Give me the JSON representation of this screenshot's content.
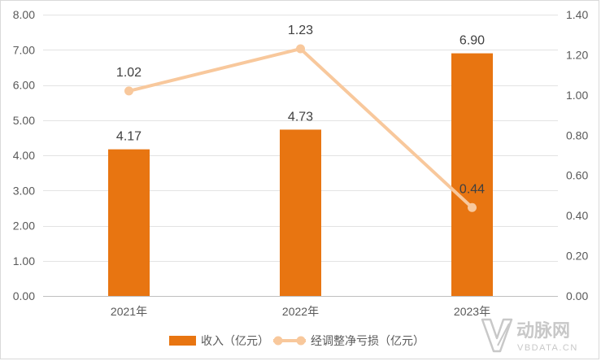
{
  "chart_data": {
    "type": "bar+line",
    "categories": [
      "2021年",
      "2022年",
      "2023年"
    ],
    "series": [
      {
        "name": "收入（亿元）",
        "type": "bar",
        "axis": "left",
        "values": [
          4.17,
          4.73,
          6.9
        ],
        "labels": [
          "4.17",
          "4.73",
          "6.90"
        ],
        "color": "#E87511"
      },
      {
        "name": "经调整净亏损（亿元）",
        "type": "line",
        "axis": "right",
        "values": [
          1.02,
          1.23,
          0.44
        ],
        "labels": [
          "1.02",
          "1.23",
          "0.44"
        ],
        "color": "#F8C89C"
      }
    ],
    "y_left": {
      "min": 0,
      "max": 8,
      "step": 1,
      "ticks": [
        "0.00",
        "1.00",
        "2.00",
        "3.00",
        "4.00",
        "5.00",
        "6.00",
        "7.00",
        "8.00"
      ]
    },
    "y_right": {
      "min": 0,
      "max": 1.4,
      "step": 0.2,
      "ticks": [
        "0.00",
        "0.20",
        "0.40",
        "0.60",
        "0.80",
        "1.00",
        "1.20",
        "1.40"
      ]
    },
    "gridlines": true,
    "legend_position": "bottom"
  },
  "watermark": {
    "text": "动脉网",
    "subtext": "VBDATA.CN",
    "color": "#c8c8c8"
  }
}
